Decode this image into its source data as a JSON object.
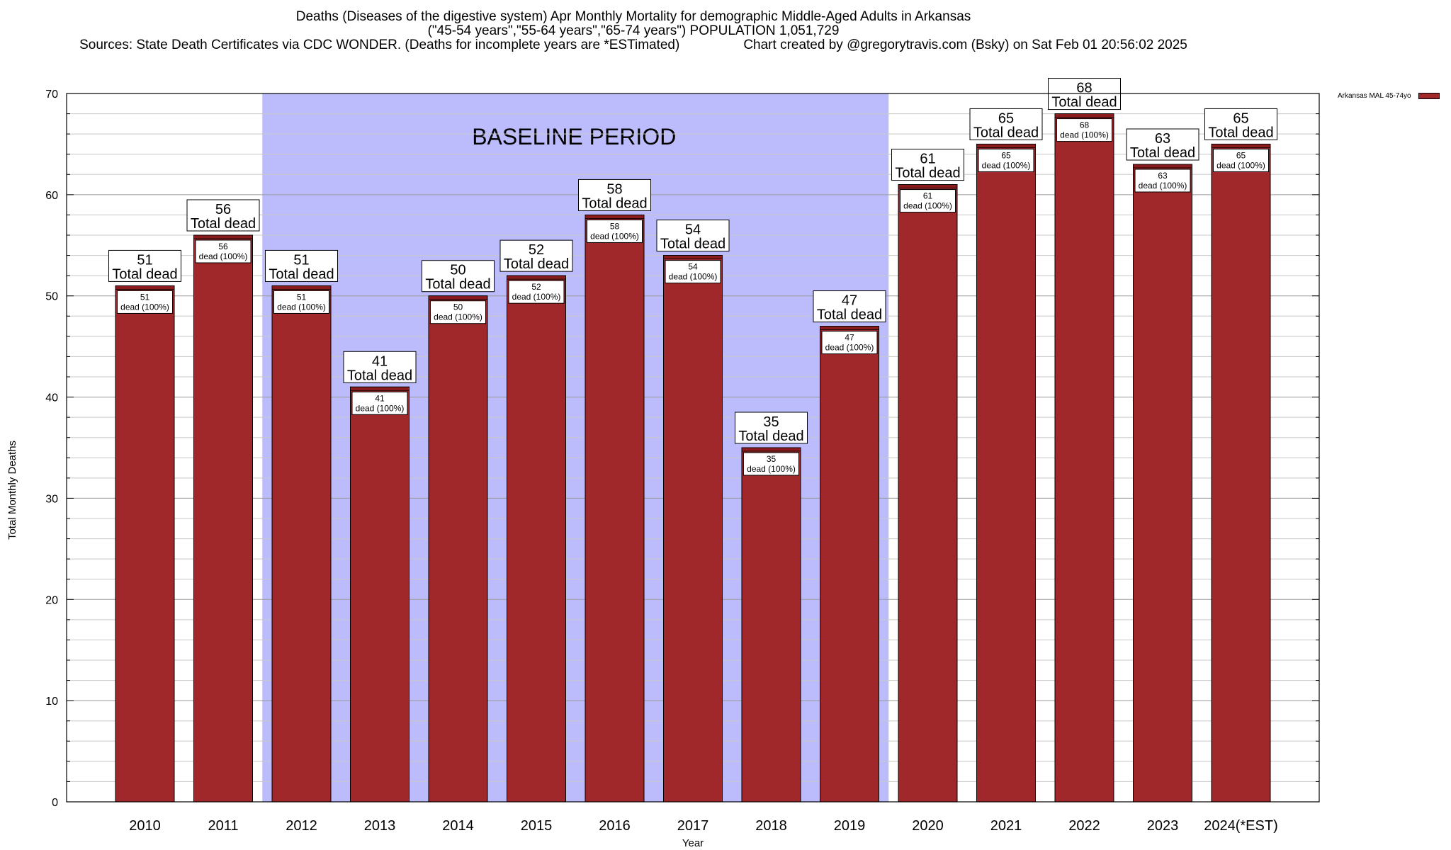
{
  "title": {
    "line1": "Deaths (Diseases of the digestive system) Apr Monthly Mortality for demographic Middle-Aged Adults in Arkansas",
    "line2": "(\"45-54 years\",\"55-64 years\",\"65-74 years\") POPULATION 1,051,729",
    "line3": "Sources: State Death Certificates via CDC WONDER. (Deaths for incomplete years are *ESTimated)",
    "credit": "Chart created by @gregorytravis.com (Bsky) on Sat Feb 01 20:56:02 2025"
  },
  "legend": {
    "label": "Arkansas MAL 45-74yo",
    "color": "#a0282a"
  },
  "chart_data": {
    "type": "bar",
    "xlabel": "Year",
    "ylabel": "Total Monthly Deaths",
    "ylim": [
      0,
      70
    ],
    "yticks": [
      0,
      10,
      20,
      30,
      40,
      50,
      60,
      70
    ],
    "grid": true,
    "categories": [
      "2010",
      "2011",
      "2012",
      "2013",
      "2014",
      "2015",
      "2016",
      "2017",
      "2018",
      "2019",
      "2020",
      "2021",
      "2022",
      "2023",
      "2024(*EST)"
    ],
    "series": [
      {
        "name": "Arkansas MAL 45-74yo",
        "values": [
          51,
          56,
          51,
          41,
          50,
          52,
          58,
          54,
          35,
          47,
          61,
          65,
          68,
          63,
          65
        ]
      }
    ],
    "bar_color": "#a0282a",
    "top_label_suffix": "Total dead",
    "inner_label_suffix": "dead (100%)",
    "baseline_period": {
      "label": "BASELINE PERIOD",
      "from": "2012",
      "to": "2019",
      "color": "#bcbcfc"
    }
  }
}
